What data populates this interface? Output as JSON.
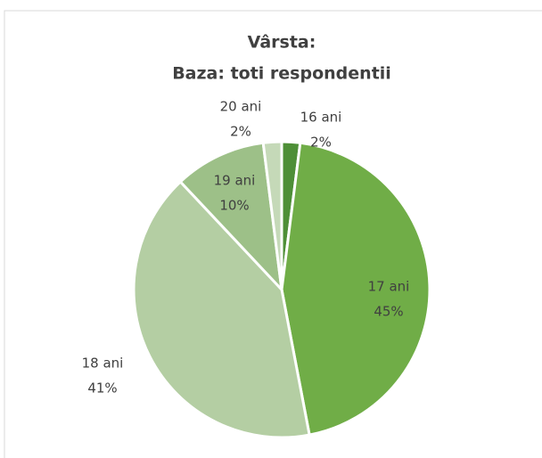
{
  "chart_data": {
    "type": "pie",
    "title": "Vârsta:",
    "subtitle": "Baza: toti respondentii",
    "categories": [
      "16 ani",
      "17 ani",
      "18 ani",
      "19 ani",
      "20 ani"
    ],
    "values": [
      2,
      45,
      41,
      10,
      2
    ],
    "value_labels": [
      "2%",
      "45%",
      "41%",
      "10%",
      "2%"
    ],
    "colors": [
      "#4e8f37",
      "#70ad47",
      "#b4cea3",
      "#9dc088",
      "#c5d9b8"
    ]
  }
}
